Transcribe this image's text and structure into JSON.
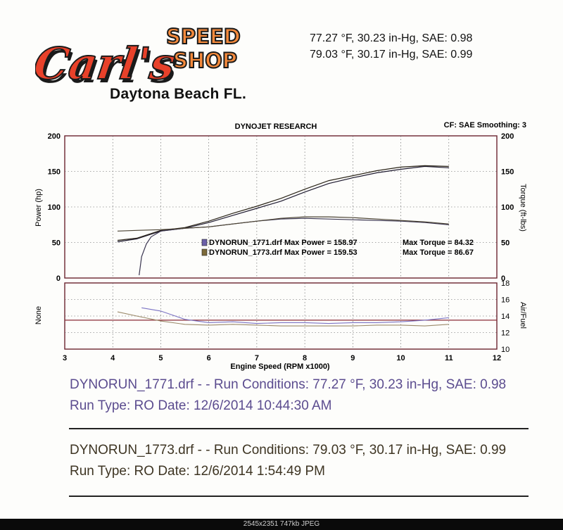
{
  "header": {
    "logo_script": "Carl's",
    "logo_speed": "SPEED",
    "logo_shop": "SHOP",
    "conditions": [
      "77.27 °F, 30.23 in-Hg, SAE: 0.98",
      "79.03 °F, 30.17 in-Hg, SAE: 0.99"
    ],
    "location": "Daytona Beach FL."
  },
  "chart_data": [
    {
      "type": "line",
      "title": "DYNOJET RESEARCH",
      "corner_note": "CF: SAE  Smoothing: 3",
      "xlabel": "Engine Speed (RPM x1000)",
      "ylabel_left": "Power (hp)",
      "ylabel_right": "Torque (ft-lbs)",
      "xlim": [
        3,
        12
      ],
      "ylim": [
        0,
        200
      ],
      "x_ticks": [
        3,
        4,
        5,
        6,
        7,
        8,
        9,
        10,
        11,
        12
      ],
      "y_ticks": [
        0,
        50,
        100,
        150,
        200
      ],
      "grid": true,
      "legend": [
        {
          "label": "DYNORUN_1771.drf Max Power = 158.97",
          "torque": "Max Torque = 84.32",
          "color": "#6a5fa8"
        },
        {
          "label": "DYNORUN_1773.drf Max Power = 159.53",
          "torque": "Max Torque = 86.67",
          "color": "#7c6a3a"
        }
      ],
      "series": [
        {
          "name": "DYNORUN_1771.drf Power",
          "color": "#1f1b30",
          "x": [
            4.1,
            4.5,
            5.0,
            5.5,
            6.0,
            6.5,
            7.0,
            7.5,
            8.0,
            8.5,
            9.0,
            9.5,
            10.0,
            10.5,
            11.0
          ],
          "values": [
            51,
            55,
            66,
            70,
            78,
            88,
            98,
            108,
            121,
            133,
            141,
            148,
            153,
            157,
            155
          ]
        },
        {
          "name": "DYNORUN_1773.drf Power",
          "color": "#2a2418",
          "x": [
            4.1,
            4.5,
            5.0,
            5.5,
            6.0,
            6.5,
            7.0,
            7.5,
            8.0,
            8.5,
            9.0,
            9.5,
            10.0,
            10.5,
            11.0
          ],
          "values": [
            53,
            56,
            67,
            71,
            80,
            91,
            101,
            112,
            125,
            137,
            144,
            151,
            156,
            158,
            157
          ]
        },
        {
          "name": "DYNORUN_1771.drf Torque",
          "color": "#3a3550",
          "x": [
            4.55,
            4.6,
            4.7,
            4.8,
            5.0,
            5.5,
            6.0,
            6.5,
            7.0,
            7.5,
            8.0,
            8.5,
            9.0,
            9.5,
            10.0,
            10.5,
            11.0
          ],
          "values": [
            4,
            30,
            48,
            58,
            66,
            70,
            72,
            76,
            80,
            83,
            84,
            83,
            82,
            81,
            80,
            78,
            75
          ]
        },
        {
          "name": "DYNORUN_1773.drf Torque",
          "color": "#4a4232",
          "x": [
            4.1,
            4.5,
            5.0,
            5.5,
            6.0,
            6.5,
            7.0,
            7.5,
            8.0,
            8.5,
            9.0,
            9.5,
            10.0,
            10.5,
            11.0
          ],
          "values": [
            66,
            67,
            68,
            70,
            72,
            76,
            80,
            84,
            86,
            86,
            85,
            83,
            81,
            79,
            76
          ]
        }
      ]
    },
    {
      "type": "line",
      "ylabel_left": "None",
      "ylabel_right": "Air/Fuel",
      "ylim": [
        10,
        18
      ],
      "y_ticks": [
        10,
        12,
        14,
        16,
        18
      ],
      "reference_line": 13.5,
      "series": [
        {
          "name": "DYNORUN_1771.drf Air/Fuel",
          "color": "#7b73c4",
          "x": [
            4.6,
            5.0,
            5.5,
            6.0,
            6.5,
            7.0,
            7.5,
            8.0,
            8.5,
            9.0,
            9.5,
            10.0,
            10.5,
            11.0
          ],
          "values": [
            15.0,
            14.6,
            13.6,
            13.2,
            13.3,
            13.1,
            13.2,
            13.2,
            13.1,
            13.2,
            13.2,
            13.3,
            13.5,
            13.8
          ]
        },
        {
          "name": "DYNORUN_1773.drf Air/Fuel",
          "color": "#9b8a6a",
          "x": [
            4.1,
            4.5,
            5.0,
            5.5,
            6.0,
            6.5,
            7.0,
            7.5,
            8.0,
            8.5,
            9.0,
            9.5,
            10.0,
            10.5,
            11.0
          ],
          "values": [
            14.5,
            14.0,
            13.4,
            13.0,
            12.9,
            13.0,
            12.9,
            12.8,
            12.8,
            12.8,
            12.8,
            12.9,
            12.9,
            12.8,
            13.0
          ]
        }
      ]
    }
  ],
  "runs": [
    {
      "line1": "DYNORUN_1771.drf -    -  Run Conditions: 77.27 °F, 30.23 in-Hg, SAE: 0.98",
      "line2": "Run Type: RO  Date: 12/6/2014 10:44:30 AM",
      "color": "#5b4c8f"
    },
    {
      "line1": "DYNORUN_1773.drf -    -  Run Conditions: 79.03 °F, 30.17 in-Hg, SAE: 0.99",
      "line2": "Run Type: RO  Date: 12/6/2014 1:54:49 PM",
      "color": "#3e3523"
    }
  ],
  "footer": "2545x2351  747kb  JPEG"
}
